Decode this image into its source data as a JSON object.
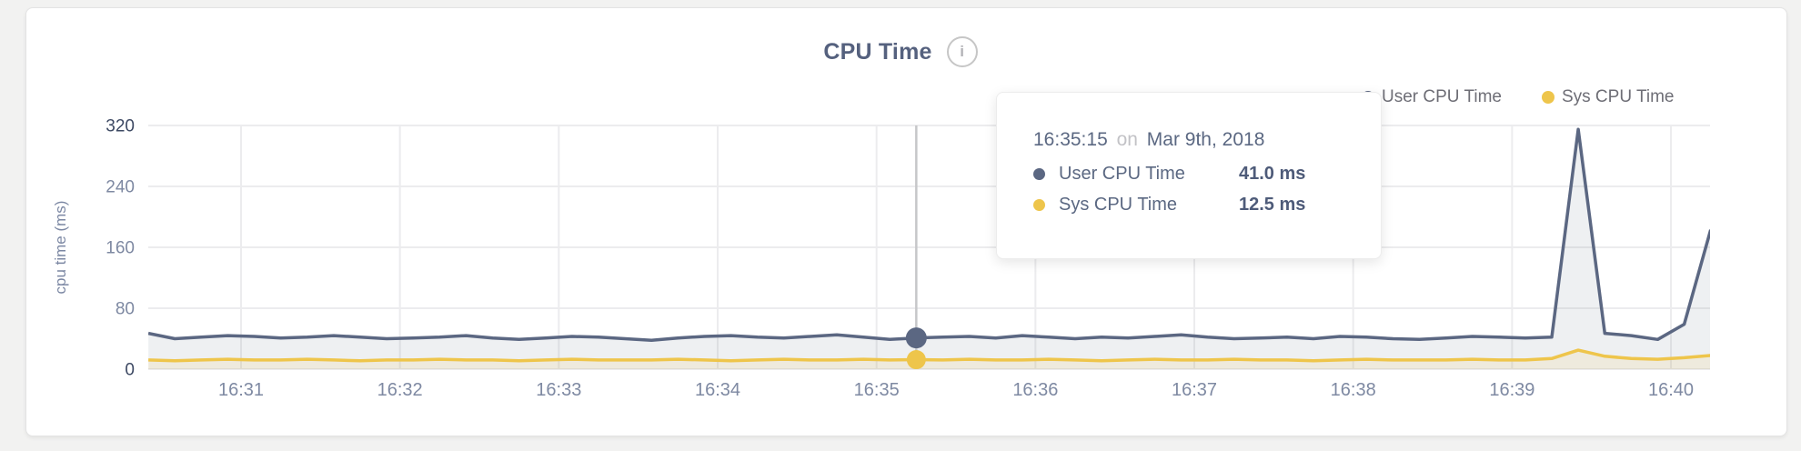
{
  "header": {
    "title": "CPU Time",
    "info_icon": "i"
  },
  "legend": [
    {
      "label": "User CPU Time",
      "color": "#5b6782"
    },
    {
      "label": "Sys CPU Time",
      "color": "#eec54b"
    }
  ],
  "tooltip": {
    "time": "16:35:15",
    "connector": "on",
    "date": "Mar 9th, 2018",
    "rows": [
      {
        "label": "User CPU Time",
        "value": "41.0 ms",
        "color": "#5b6782"
      },
      {
        "label": "Sys CPU Time",
        "value": "12.5 ms",
        "color": "#eec54b"
      }
    ]
  },
  "colors": {
    "page_bg": "#f2f2f1",
    "card_bg": "#ffffff",
    "card_border": "#e3e3e3",
    "title": "#55617e",
    "grid": "#ececee",
    "axis_tick": "#7e89a2",
    "axis_tick_strong": "#3d4963",
    "axis_label": "#7b87a3",
    "crosshair": "#c6c7c9",
    "legend_text": "#6e6e76",
    "user_line": "#5b6782",
    "sys_line": "#eec54b",
    "user_fill": "rgba(91,103,130,0.10)",
    "sys_fill": "rgba(238,197,75,0.12)"
  },
  "chart_data": {
    "type": "area",
    "title": "CPU Time",
    "xlabel": "",
    "ylabel": "cpu time (ms)",
    "ylim": [
      0,
      320
    ],
    "y_ticks": [
      0,
      80,
      160,
      240,
      320
    ],
    "x_ticks": [
      "16:31",
      "16:32",
      "16:33",
      "16:34",
      "16:35",
      "16:36",
      "16:37",
      "16:38",
      "16:39",
      "16:40"
    ],
    "x_start": "16:30:25",
    "x_interval_seconds": 10,
    "grid": true,
    "legend_position": "top-right",
    "hover": {
      "index": 29,
      "time": "16:35:15",
      "date": "Mar 9th, 2018",
      "user_ms": 41.0,
      "sys_ms": 12.5
    },
    "series": [
      {
        "name": "User CPU Time",
        "color": "#5b6782",
        "unit": "ms",
        "values": [
          47,
          40,
          42,
          44,
          43,
          41,
          42,
          44,
          42,
          40,
          41,
          42,
          44,
          41,
          39,
          41,
          43,
          42,
          40,
          38,
          41,
          43,
          44,
          42,
          41,
          43,
          45,
          42,
          39,
          41,
          42,
          43,
          41,
          44,
          42,
          40,
          42,
          41,
          43,
          45,
          42,
          40,
          41,
          42,
          40,
          43,
          42,
          40,
          39,
          41,
          43,
          42,
          41,
          42,
          315,
          47,
          44,
          39,
          59,
          183
        ]
      },
      {
        "name": "Sys CPU Time",
        "color": "#eec54b",
        "unit": "ms",
        "values": [
          12,
          11,
          12,
          13,
          12,
          12,
          13,
          12,
          11,
          12,
          12,
          13,
          12,
          12,
          11,
          12,
          13,
          12,
          12,
          12,
          13,
          12,
          11,
          12,
          13,
          12,
          12,
          13,
          12,
          12.5,
          12,
          13,
          12,
          12,
          13,
          12,
          11,
          12,
          13,
          12,
          12,
          13,
          12,
          12,
          11,
          12,
          13,
          12,
          12,
          12,
          13,
          12,
          12,
          14,
          25,
          17,
          14,
          13,
          15,
          18
        ]
      }
    ]
  }
}
